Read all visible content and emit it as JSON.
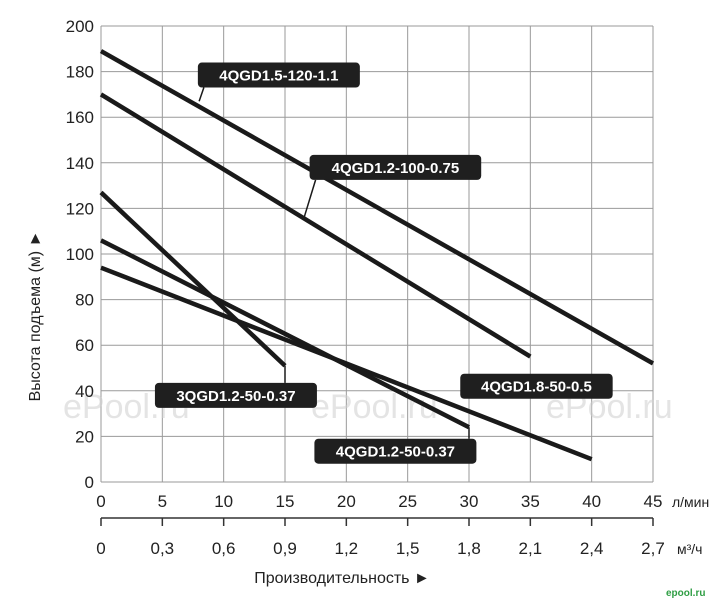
{
  "watermark": "ePool.ru",
  "logo_text": "epool.ru",
  "chart_data": {
    "type": "line",
    "ylabel": "Высота подъема (м) ►",
    "xlabel": "Производительность ►",
    "y_ticks": [
      "0",
      "20",
      "40",
      "60",
      "80",
      "100",
      "120",
      "140",
      "160",
      "180",
      "200"
    ],
    "ylim": [
      0,
      200
    ],
    "x_primary": {
      "unit": "л/мин",
      "range": [
        0,
        45
      ],
      "ticks": [
        "0",
        "5",
        "10",
        "15",
        "20",
        "25",
        "30",
        "35",
        "40",
        "45"
      ]
    },
    "x_secondary": {
      "unit": "м³/ч",
      "range": [
        0,
        2.7
      ],
      "ticks": [
        "0",
        "0,3",
        "0,6",
        "0,9",
        "1,2",
        "1,5",
        "1,8",
        "2,1",
        "2,4",
        "2,7"
      ]
    },
    "grid": true,
    "line_color": "#1a1a1a",
    "series": [
      {
        "name": "4QGD1.5-120-1.1",
        "x": [
          0,
          45
        ],
        "y": [
          189,
          52
        ]
      },
      {
        "name": "4QGD1.2-100-0.75",
        "x": [
          0,
          35
        ],
        "y": [
          170,
          55
        ]
      },
      {
        "name": "3QGD1.2-50-0.37",
        "x": [
          0,
          15
        ],
        "y": [
          127,
          51
        ]
      },
      {
        "name": "4QGD1.8-50-0.5",
        "x": [
          0,
          40
        ],
        "y": [
          94,
          10
        ]
      },
      {
        "name": "4QGD1.2-50-0.37",
        "x": [
          0,
          30
        ],
        "y": [
          106,
          24
        ]
      }
    ],
    "callouts": [
      {
        "text": "4QGD1.5-120-1.1",
        "point": [
          8,
          167
        ],
        "label": [
          14.5,
          178.5
        ]
      },
      {
        "text": "4QGD1.2-100-0.75",
        "point": [
          16.5,
          115
        ],
        "label": [
          24,
          138
        ]
      },
      {
        "text": "3QGD1.2-50-0.37",
        "point": [
          15,
          51
        ],
        "label": [
          11,
          38
        ]
      },
      {
        "text": "4QGD1.8-50-0.5",
        "point": [
          35,
          40
        ],
        "label": [
          35.5,
          42
        ]
      },
      {
        "text": "4QGD1.2-50-0.37",
        "point": [
          30,
          24
        ],
        "label": [
          24,
          13.5
        ]
      }
    ]
  }
}
